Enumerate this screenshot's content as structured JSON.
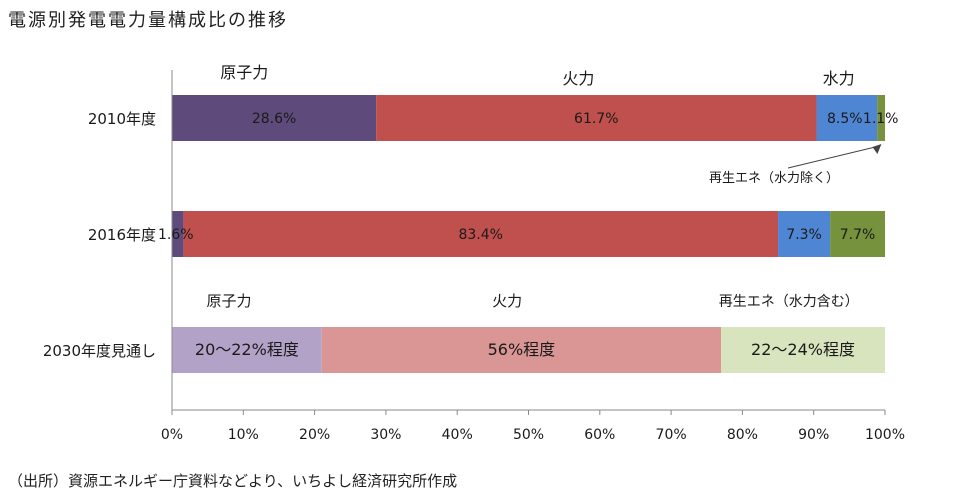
{
  "title": "電源別発電電力量構成比の推移",
  "source": "（出所）資源エネルギー庁資料などより、いちよし経済研究所作成",
  "colors": {
    "nuclear": "#5f4a7c",
    "thermal": "#c0504d",
    "hydro": "#4f86d3",
    "renewable": "#76923c",
    "nuclear_2030": "#b3a2c7",
    "thermal_2030": "#d99694",
    "renewable_2030": "#d7e4bd"
  },
  "chart_data": {
    "type": "bar",
    "orientation": "horizontal",
    "stacked": "percent",
    "xlim": [
      0,
      100
    ],
    "x_ticks": [
      "0%",
      "10%",
      "20%",
      "30%",
      "40%",
      "50%",
      "60%",
      "70%",
      "80%",
      "90%",
      "100%"
    ],
    "grid": false,
    "categories": [
      "2010年度",
      "2016年度",
      "2030年度見通し"
    ],
    "rows": [
      {
        "category": "2010年度",
        "segments": [
          {
            "value": 28.6,
            "label": "28.6%",
            "color": "#5f4a7c"
          },
          {
            "value": 61.7,
            "label": "61.7%",
            "color": "#c0504d"
          },
          {
            "value": 8.5,
            "label": "8.5%",
            "color": "#4f86d3"
          },
          {
            "value": 1.1,
            "label": "1.1%",
            "color": "#76923c"
          }
        ]
      },
      {
        "category": "2016年度",
        "segments": [
          {
            "value": 1.6,
            "label": "1.6%",
            "color": "#5f4a7c"
          },
          {
            "value": 83.4,
            "label": "83.4%",
            "color": "#c0504d"
          },
          {
            "value": 7.3,
            "label": "7.3%",
            "color": "#4f86d3"
          },
          {
            "value": 7.7,
            "label": "7.7%",
            "color": "#76923c"
          }
        ]
      },
      {
        "category": "2030年度見通し",
        "segments": [
          {
            "value": 21,
            "label": "20～22%程度",
            "color": "#b3a2c7"
          },
          {
            "value": 56,
            "label": "56%程度",
            "color": "#d99694"
          },
          {
            "value": 23,
            "label": "22～24%程度",
            "color": "#d7e4bd"
          }
        ]
      }
    ],
    "annotations": [
      {
        "text": "原子力",
        "row": 0,
        "x": 10
      },
      {
        "text": "火力",
        "row": 0,
        "x": 57
      },
      {
        "text": "水力",
        "row": 0,
        "x": 93.5
      },
      {
        "text": "再生エネ（水力除く）",
        "row": 0,
        "x": 85,
        "arrow_to": 99.5
      },
      {
        "text": "原子力",
        "row": 2,
        "x": 8
      },
      {
        "text": "火力",
        "row": 2,
        "x": 47
      },
      {
        "text": "再生エネ（水力含む）",
        "row": 2,
        "x": 86.5
      }
    ]
  }
}
